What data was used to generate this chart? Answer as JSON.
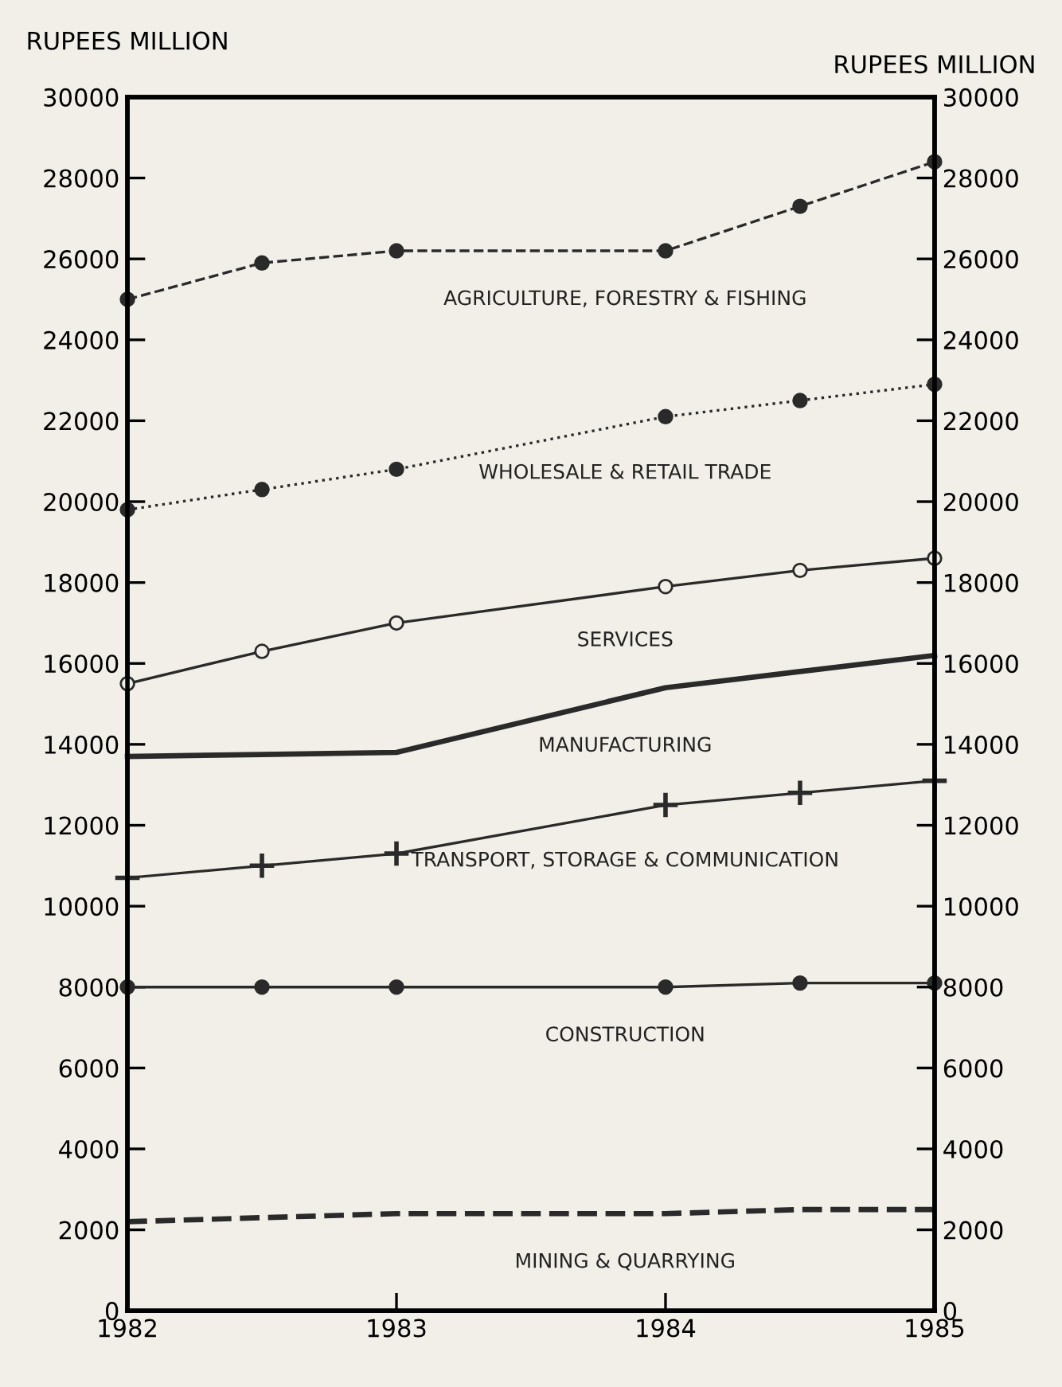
{
  "chart_data": {
    "type": "line",
    "ylabel": "RUPEES MILLION",
    "y2label": "RUPEES MILLION",
    "x": [
      1982,
      1982.5,
      1983,
      1984,
      1984.5,
      1985
    ],
    "series": [
      {
        "name": "AGRICULTURE, FORESTRY & FISHING",
        "color": "#2a2a2a",
        "marker": "circle",
        "line_style": "dashed",
        "values": [
          25000,
          25900,
          26200,
          26200,
          27300,
          28400
        ]
      },
      {
        "name": "WHOLESALE & RETAIL TRADE",
        "color": "#2a2a2a",
        "marker": "circle",
        "line_style": "dotted",
        "values": [
          19800,
          20300,
          20800,
          22100,
          22500,
          22900
        ]
      },
      {
        "name": "SERVICES",
        "color": "#2a2a2a",
        "marker": "circle",
        "line_style": "solid",
        "values": [
          15500,
          16300,
          17000,
          17900,
          18300,
          18600
        ]
      },
      {
        "name": "MANUFACTURING",
        "color": "#2a2a2a",
        "marker": "none",
        "line_style": "solid",
        "values": [
          13700,
          13750,
          13800,
          15400,
          15800,
          16200
        ]
      },
      {
        "name": "TRANSPORT, STORAGE & COMMUNICATION",
        "color": "#2a2a2a",
        "marker": "cross",
        "line_style": "solid",
        "values": [
          10700,
          11000,
          11300,
          12500,
          12800,
          13100
        ]
      },
      {
        "name": "CONSTRUCTION",
        "color": "#2a2a2a",
        "marker": "circle",
        "line_style": "solid",
        "values": [
          8000,
          8000,
          8000,
          8000,
          8100,
          8100
        ]
      },
      {
        "name": "MINING & QUARRYING",
        "color": "#2a2a2a",
        "marker": "none",
        "line_style": "dashed",
        "values": [
          2200,
          2300,
          2400,
          2400,
          2500,
          2500
        ]
      }
    ],
    "xlim": [
      1982,
      1985
    ],
    "xticks": [
      1982,
      1983,
      1984,
      1985
    ],
    "ylim": [
      0,
      30000
    ],
    "yticks": [
      0,
      2000,
      4000,
      6000,
      8000,
      10000,
      12000,
      14000,
      16000,
      18000,
      20000,
      22000,
      24000,
      26000,
      28000,
      30000
    ],
    "y2lim": [
      0,
      30000
    ],
    "y2ticks": [
      0,
      2000,
      4000,
      6000,
      8000,
      10000,
      12000,
      14000,
      16000,
      18000,
      20000,
      22000,
      24000,
      26000,
      28000,
      30000
    ],
    "grid": false,
    "legend": false
  }
}
